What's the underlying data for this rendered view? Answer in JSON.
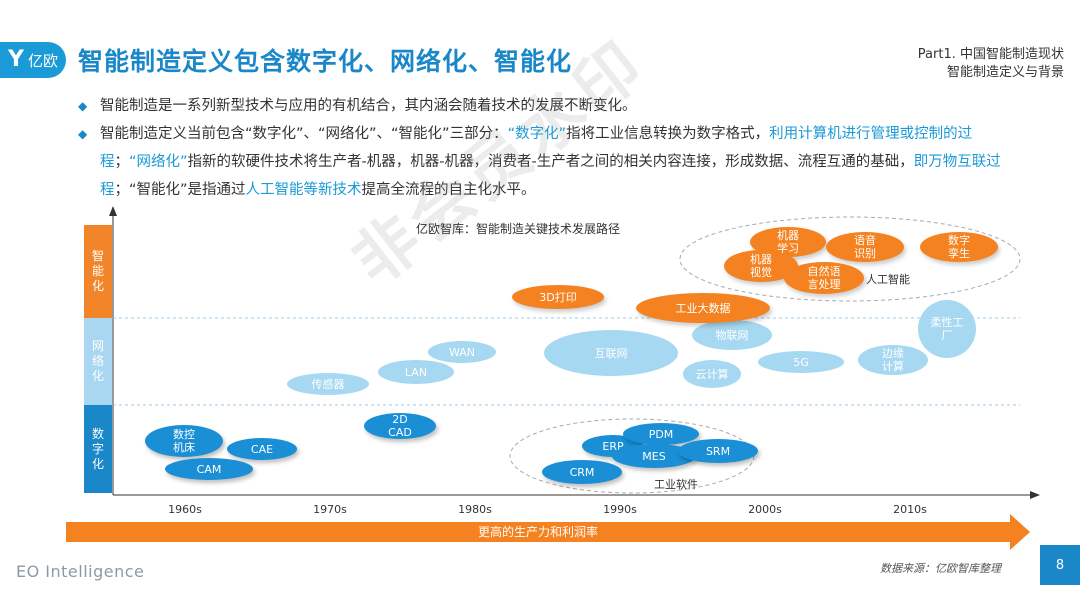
{
  "logo": {
    "mark": "Y",
    "text": "亿欧"
  },
  "title": "智能制造定义包含数字化、网络化、智能化",
  "part": {
    "line1": "Part1. 中国智能制造现状",
    "line2": "智能制造定义与背景"
  },
  "bullets": {
    "b1": "智能制造是一系列新型技术与应用的有机结合，其内涵会随着技术的发展不断变化。",
    "b2_seg1": "智能制造定义当前包含“数字化”、“网络化”、“智能化”三部分：",
    "b2_seg2": "“数字化”",
    "b2_seg3": "指将工业信息转换为数字格式，",
    "b2_seg4": "利用计算机进行管理或控制的过程",
    "b2_seg5": "；",
    "b2_seg6": "“网络化”",
    "b2_seg7": "指新的软硬件技术将生产者-机器，机器-机器，消费者-生产者之间的相关内容连接，形成数据、流程互通的基础，",
    "b2_seg8": "即万物互联过程",
    "b2_seg9": "；“智能化”是指通过",
    "b2_seg10": "人工智能等新技术",
    "b2_seg11": "提高全流程的自主化水平。"
  },
  "diagram": {
    "title": "亿欧智库：智能制造关键技术发展路径",
    "bands": {
      "intelligent": "智能化",
      "networked": "网络化",
      "digital": "数字化"
    },
    "groups": {
      "ai": "人工智能",
      "industrial_software": "工业软件"
    },
    "nodes": {
      "nc": "数控机床",
      "cae": "CAE",
      "cam": "CAM",
      "cad": "2D CAD",
      "sensor": "传感器",
      "lan": "LAN",
      "wan": "WAN",
      "print3d": "3D打印",
      "internet": "互联网",
      "erp": "ERP",
      "pdm": "PDM",
      "mes": "MES",
      "srm": "SRM",
      "crm": "CRM",
      "bigdata": "工业大数据",
      "iot": "物联网",
      "cloud": "云计算",
      "g5": "5G",
      "ml": "机器学习",
      "speech": "语音识别",
      "vision": "机器视觉",
      "nlp": "自然语言处理",
      "edge": "边缘计算",
      "flexible": "柔性工厂",
      "twin": "数字孪生"
    },
    "x_ticks": [
      "1960s",
      "1970s",
      "1980s",
      "1990s",
      "2000s",
      "2010s"
    ],
    "arrow_label": "更高的生产力和利润率"
  },
  "watermark": "非会员水印",
  "footer": {
    "brand": "EO Intelligence",
    "source": "数据来源：亿欧智库整理",
    "page": "8"
  },
  "colors": {
    "primary_blue": "#1a87c9",
    "orange": "#f58220",
    "light_blue": "#a7d8f1"
  }
}
